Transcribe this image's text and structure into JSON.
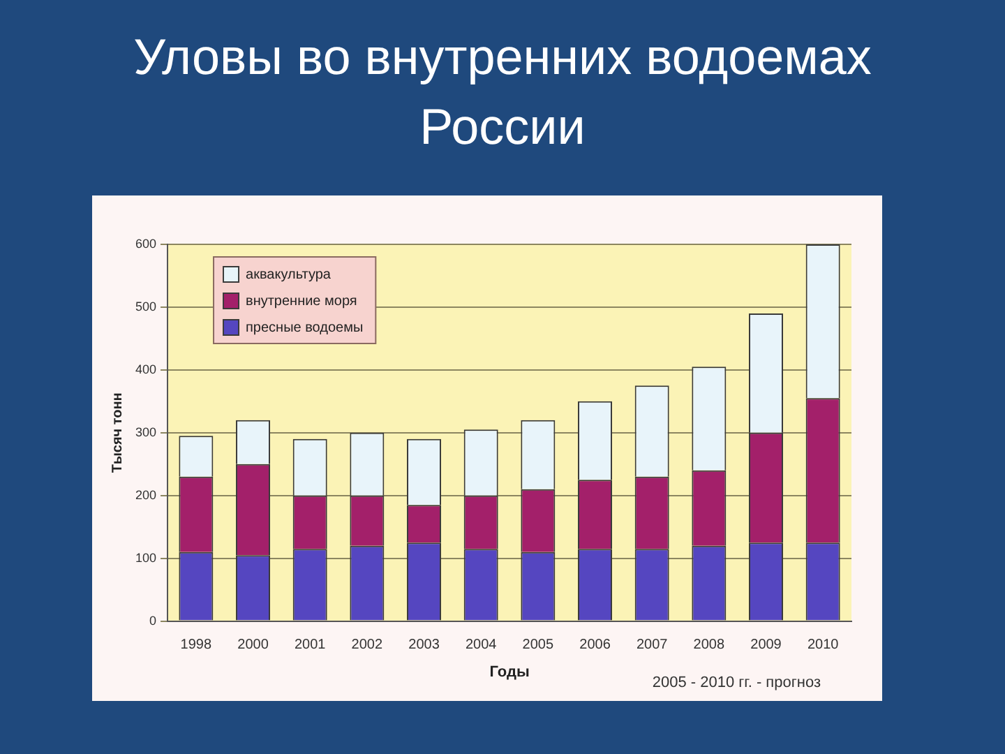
{
  "chart_data": {
    "type": "bar",
    "title": "Уловы во внутренних водоемах России",
    "xlabel": "Годы",
    "ylabel": "Тысяч тонн",
    "annotations": [
      "2005 - 2010 гг. - прогноз"
    ],
    "categories": [
      "1998",
      "2000",
      "2001",
      "2002",
      "2003",
      "2004",
      "2005",
      "2006",
      "2007",
      "2008",
      "2009",
      "2010"
    ],
    "stacked": true,
    "series": [
      {
        "name": "пресные водоемы",
        "color": "#5546c0",
        "values": [
          110,
          105,
          115,
          120,
          125,
          115,
          110,
          115,
          115,
          120,
          125,
          125
        ]
      },
      {
        "name": "внутренние моря",
        "color": "#a3206a",
        "values": [
          120,
          145,
          85,
          80,
          60,
          85,
          100,
          110,
          115,
          120,
          175,
          230
        ]
      },
      {
        "name": "аквакультура",
        "color": "#e8f4fa",
        "values": [
          65,
          70,
          90,
          100,
          105,
          105,
          110,
          125,
          145,
          165,
          190,
          245
        ]
      }
    ],
    "ylim": [
      0,
      600
    ],
    "yticks": [
      0,
      100,
      200,
      300,
      400,
      500,
      600
    ],
    "grid": "y",
    "legend": "top left"
  }
}
